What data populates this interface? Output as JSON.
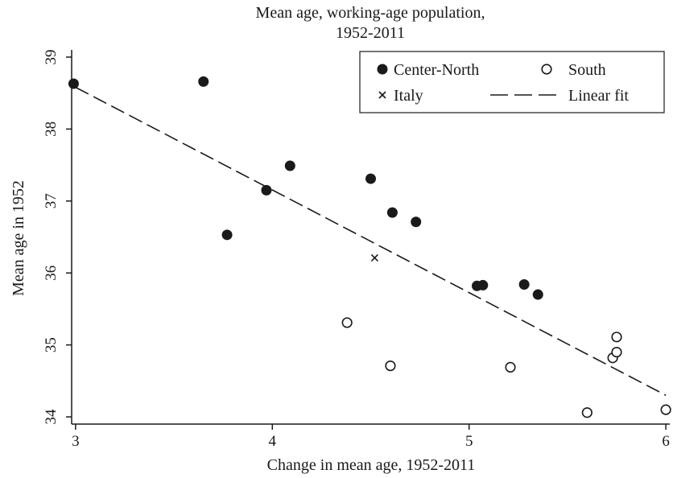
{
  "chart_data": {
    "type": "scatter",
    "title_lines": [
      "Mean age, working-age population,",
      "1952-2011"
    ],
    "xlabel": "Change in mean age, 1952-2011",
    "ylabel": "Mean age in 1952",
    "xlim": [
      2.98,
      6.02
    ],
    "ylim": [
      33.9,
      39.1
    ],
    "xticks": [
      "3",
      "4",
      "5",
      "6"
    ],
    "yticks": [
      "34",
      "35",
      "36",
      "37",
      "38",
      "39"
    ],
    "series": [
      {
        "name": "Center-North",
        "marker": "filled-circle",
        "points": [
          [
            2.99,
            38.63
          ],
          [
            3.65,
            38.66
          ],
          [
            3.77,
            36.53
          ],
          [
            3.97,
            37.15
          ],
          [
            4.09,
            37.49
          ],
          [
            4.5,
            37.31
          ],
          [
            4.61,
            36.84
          ],
          [
            4.73,
            36.71
          ],
          [
            5.04,
            35.82
          ],
          [
            5.07,
            35.83
          ],
          [
            5.28,
            35.84
          ],
          [
            5.35,
            35.7
          ]
        ]
      },
      {
        "name": "South",
        "marker": "open-circle",
        "points": [
          [
            4.38,
            35.31
          ],
          [
            4.6,
            34.71
          ],
          [
            5.21,
            34.69
          ],
          [
            5.6,
            34.06
          ],
          [
            5.73,
            34.82
          ],
          [
            5.75,
            34.9
          ],
          [
            5.75,
            35.11
          ],
          [
            6.0,
            34.1
          ]
        ]
      },
      {
        "name": "Italy",
        "marker": "x",
        "points": [
          [
            4.52,
            36.21
          ]
        ]
      },
      {
        "name": "Linear fit",
        "type": "line",
        "style": "dashed",
        "points": [
          [
            3.0,
            38.58
          ],
          [
            6.0,
            34.3
          ]
        ]
      }
    ],
    "legend": {
      "placement": "top-right",
      "entries": [
        "Center-North",
        "South",
        "Italy",
        "Linear fit"
      ]
    },
    "grid": false,
    "colors": {
      "marker": "#1a1a1a",
      "background": "#ffffff"
    }
  }
}
